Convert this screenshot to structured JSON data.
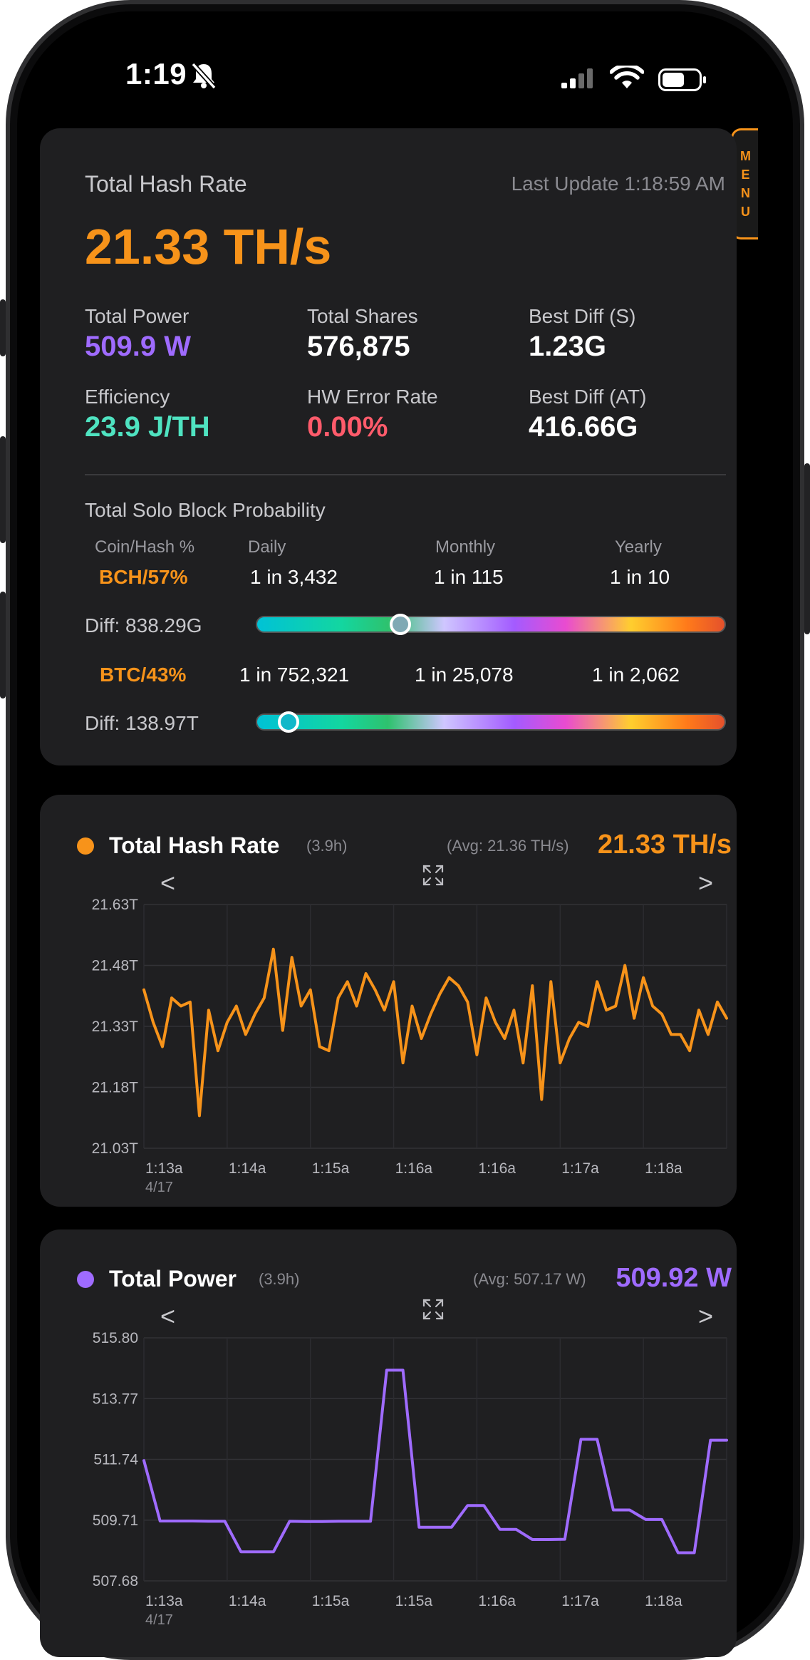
{
  "status": {
    "time": "1:19"
  },
  "menu": {
    "letters": [
      "M",
      "E",
      "N",
      "U"
    ]
  },
  "summary": {
    "title": "Total Hash Rate",
    "last_update": "Last Update 1:18:59 AM",
    "hashrate": "21.33 TH/s",
    "stats": [
      {
        "label": "Total Power",
        "value": "509.9 W",
        "color": "#9f6bff"
      },
      {
        "label": "Total Shares",
        "value": "576,875",
        "color": "#ffffff"
      },
      {
        "label": "Best Diff (S)",
        "value": "1.23G",
        "color": "#ffffff"
      },
      {
        "label": "Efficiency",
        "value": "23.9 J/TH",
        "color": "#4fe3c1"
      },
      {
        "label": "HW Error Rate",
        "value": "0.00%",
        "color": "#ff5b6b"
      },
      {
        "label": "Best Diff (AT)",
        "value": "416.66G",
        "color": "#ffffff"
      }
    ],
    "probability": {
      "title": "Total Solo Block Probability",
      "headers": [
        "Coin/Hash %",
        "Daily",
        "Monthly",
        "Yearly"
      ],
      "rows": [
        {
          "coin": "BCH/57%",
          "daily": "1 in 3,432",
          "monthly": "1 in 115",
          "yearly": "1 in 10",
          "diff": "Diff: 838.29G",
          "knob_fraction": 0.296,
          "knob_color": "#7fa9b4"
        },
        {
          "coin": "BTC/43%",
          "daily": "1 in 752,321",
          "monthly": "1 in 25,078",
          "yearly": "1 in 2,062",
          "diff": "Diff: 138.97T",
          "knob_fraction": 0.046,
          "knob_color": "#11b8c9"
        }
      ]
    }
  },
  "charts": [
    {
      "title": "Total Hash Rate",
      "duration": "(3.9h)",
      "avg": "(Avg: 21.36 TH/s)",
      "current": "21.33 TH/s",
      "color": "#f7931a",
      "prev": "<",
      "next": ">",
      "expand_icon": "expand-icon",
      "chart_data": {
        "type": "line",
        "y_ticks": [
          "21.63T",
          "21.48T",
          "21.33T",
          "21.18T",
          "21.03T"
        ],
        "ylim": [
          21.03,
          21.63
        ],
        "x_ticks": [
          "1:13a",
          "1:14a",
          "1:15a",
          "1:16a",
          "1:16a",
          "1:17a",
          "1:18a"
        ],
        "x_subtitle": "4/17",
        "grid": true,
        "values": [
          21.42,
          21.34,
          21.28,
          21.4,
          21.38,
          21.39,
          21.11,
          21.37,
          21.27,
          21.34,
          21.38,
          21.31,
          21.36,
          21.4,
          21.52,
          21.32,
          21.5,
          21.38,
          21.42,
          21.28,
          21.27,
          21.4,
          21.44,
          21.38,
          21.46,
          21.42,
          21.37,
          21.44,
          21.24,
          21.38,
          21.3,
          21.36,
          21.41,
          21.45,
          21.43,
          21.39,
          21.26,
          21.4,
          21.34,
          21.3,
          21.37,
          21.24,
          21.43,
          21.15,
          21.44,
          21.24,
          21.3,
          21.34,
          21.33,
          21.44,
          21.37,
          21.38,
          21.48,
          21.35,
          21.45,
          21.38,
          21.36,
          21.31,
          21.31,
          21.27,
          21.37,
          21.31,
          21.39,
          21.35
        ]
      }
    },
    {
      "title": "Total Power",
      "duration": "(3.9h)",
      "avg": "(Avg: 507.17 W)",
      "current": "509.92 W",
      "color": "#9f6bff",
      "prev": "<",
      "next": ">",
      "expand_icon": "expand-icon",
      "chart_data": {
        "type": "line",
        "y_ticks": [
          "515.80",
          "513.77",
          "511.74",
          "509.71",
          "507.68"
        ],
        "ylim": [
          507.68,
          515.8
        ],
        "x_ticks": [
          "1:13a",
          "1:14a",
          "1:15a",
          "1:15a",
          "1:16a",
          "1:17a",
          "1:18a"
        ],
        "x_subtitle": "4/17",
        "grid": true,
        "values": [
          511.7,
          509.68,
          509.68,
          509.68,
          509.67,
          509.67,
          508.65,
          508.65,
          508.65,
          509.67,
          509.66,
          509.66,
          509.67,
          509.67,
          509.67,
          514.72,
          514.72,
          509.47,
          509.47,
          509.47,
          510.2,
          510.2,
          509.4,
          509.4,
          509.06,
          509.06,
          509.07,
          512.41,
          512.41,
          510.05,
          510.05,
          509.73,
          509.73,
          508.62,
          508.62,
          512.38,
          512.38
        ]
      }
    }
  ]
}
